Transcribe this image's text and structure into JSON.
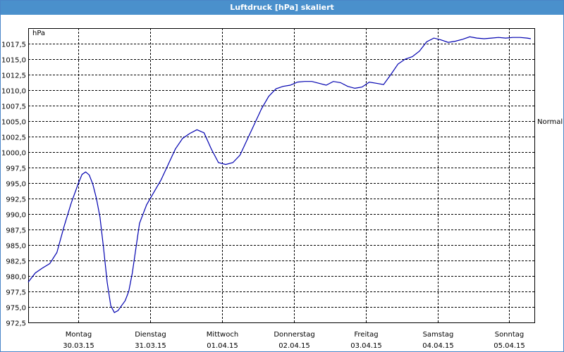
{
  "window": {
    "title": "Luftdruck [hPa] skaliert"
  },
  "colors": {
    "titlebar": "#4a90cc",
    "line": "#0000b0",
    "grid": "#000000"
  },
  "chart_data": {
    "type": "line",
    "title": "Luftdruck [hPa] skaliert",
    "ylabel": "hPa",
    "ylim": [
      972.5,
      1020
    ],
    "yticks": [
      "972,5",
      "975,0",
      "977,5",
      "980,0",
      "982,5",
      "985,0",
      "987,5",
      "990,0",
      "992,5",
      "995,0",
      "997,5",
      "1000,0",
      "1002,5",
      "1005,0",
      "1007,5",
      "1010,0",
      "1012,5",
      "1015,0",
      "1017,5"
    ],
    "ytick_values": [
      972.5,
      975,
      977.5,
      980,
      982.5,
      985,
      987.5,
      990,
      992.5,
      995,
      997.5,
      1000,
      1002.5,
      1005,
      1007.5,
      1010,
      1012.5,
      1015,
      1017.5
    ],
    "xlim": [
      0,
      7.05
    ],
    "xticks": [
      {
        "day": "Montag",
        "date": "30.03.15"
      },
      {
        "day": "Dienstag",
        "date": "31.03.15"
      },
      {
        "day": "Mittwoch",
        "date": "01.04.15"
      },
      {
        "day": "Donnerstag",
        "date": "02.04.15"
      },
      {
        "day": "Freitag",
        "date": "03.04.15"
      },
      {
        "day": "Samstag",
        "date": "04.04.15"
      },
      {
        "day": "Sonntag",
        "date": "05.04.15"
      }
    ],
    "reference_label": "Normal",
    "reference_value": 1005.0,
    "grid": true,
    "series": [
      {
        "x": [
          0.0,
          0.1,
          0.2,
          0.3,
          0.4,
          0.5,
          0.6,
          0.7,
          0.75,
          0.8,
          0.85,
          0.9,
          0.95,
          1.0,
          1.05,
          1.1,
          1.15,
          1.2,
          1.25,
          1.3,
          1.35,
          1.4,
          1.45,
          1.55,
          1.65,
          1.75,
          1.85,
          1.95,
          2.05,
          2.15,
          2.25,
          2.35,
          2.45,
          2.55,
          2.65,
          2.75,
          2.85,
          2.95,
          3.05,
          3.15,
          3.25,
          3.35,
          3.45,
          3.55,
          3.65,
          3.75,
          3.85,
          3.95,
          4.05,
          4.15,
          4.25,
          4.35,
          4.45,
          4.55,
          4.65,
          4.75,
          4.85,
          4.95,
          5.05,
          5.15,
          5.25,
          5.35,
          5.45,
          5.55,
          5.65,
          5.75,
          5.85,
          5.95,
          6.05,
          6.15,
          6.25,
          6.35,
          6.45,
          6.55,
          6.65,
          6.75,
          6.85,
          6.95,
          7.0
        ],
        "y": [
          979.0,
          980.5,
          981.3,
          982.0,
          983.8,
          988.0,
          991.8,
          995.0,
          996.4,
          996.8,
          996.3,
          994.8,
          992.5,
          989.5,
          984.5,
          979.0,
          975.2,
          974.1,
          974.4,
          975.2,
          976.0,
          977.5,
          980.5,
          988.5,
          991.5,
          993.5,
          995.5,
          998.0,
          1000.5,
          1002.2,
          1003.0,
          1003.6,
          1003.1,
          1000.5,
          998.3,
          998.0,
          998.3,
          999.5,
          1002.0,
          1004.5,
          1007.0,
          1009.0,
          1010.2,
          1010.6,
          1010.8,
          1011.3,
          1011.4,
          1011.4,
          1011.1,
          1010.8,
          1011.4,
          1011.2,
          1010.6,
          1010.3,
          1010.5,
          1011.3,
          1011.1,
          1010.9,
          1012.5,
          1014.2,
          1015.0,
          1015.4,
          1016.3,
          1017.8,
          1018.4,
          1018.1,
          1017.7,
          1017.9,
          1018.2,
          1018.6,
          1018.4,
          1018.3,
          1018.4,
          1018.5,
          1018.4,
          1018.5,
          1018.5,
          1018.4,
          1018.3
        ]
      }
    ]
  }
}
